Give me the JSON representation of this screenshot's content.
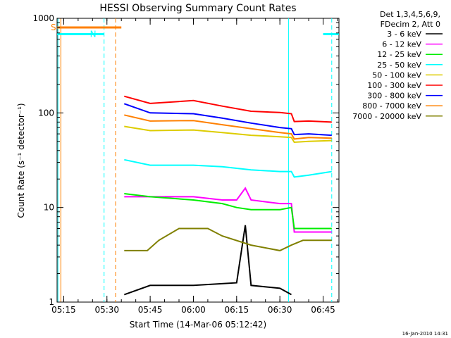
{
  "chart_data": {
    "type": "line",
    "title": "HESSI Observing Summary Count Rates",
    "xlabel": "Start Time (14-Mar-06 05:12:42)",
    "ylabel": "Count Rate (s⁻¹ detector⁻¹)",
    "y_scale": "log",
    "ylim": [
      1,
      1000
    ],
    "xlim": [
      "05:12:42",
      "06:50:30"
    ],
    "y_ticks": [
      "1",
      "10",
      "100",
      "1000"
    ],
    "x_ticks": [
      "05:15",
      "05:30",
      "05:45",
      "06:00",
      "06:15",
      "06:30",
      "06:45"
    ],
    "legend_header": [
      "Det 1,3,4,5,6,9,",
      "FDecim 2, Att 0"
    ],
    "series": [
      {
        "name": "3 - 6 keV",
        "color": "#000000",
        "points": [
          [
            "05:36",
            "1.2"
          ],
          [
            "05:45",
            "1.5"
          ],
          [
            "06:00",
            "1.5"
          ],
          [
            "06:15",
            "1.6"
          ],
          [
            "06:18",
            "6.5"
          ],
          [
            "06:20",
            "1.5"
          ],
          [
            "06:30",
            "1.4"
          ],
          [
            "06:34",
            "1.2"
          ]
        ]
      },
      {
        "name": "6 - 12 keV",
        "color": "#ff00ff",
        "points": [
          [
            "05:36",
            "13"
          ],
          [
            "05:45",
            "13"
          ],
          [
            "06:00",
            "13"
          ],
          [
            "06:10",
            "12"
          ],
          [
            "06:15",
            "12"
          ],
          [
            "06:18",
            "16"
          ],
          [
            "06:20",
            "12"
          ],
          [
            "06:30",
            "11"
          ],
          [
            "06:34",
            "11"
          ],
          [
            "06:35",
            "5.5"
          ],
          [
            "06:48",
            "5.5"
          ]
        ]
      },
      {
        "name": "12 - 25 keV",
        "color": "#00ee00",
        "points": [
          [
            "05:36",
            "14"
          ],
          [
            "05:45",
            "13"
          ],
          [
            "06:00",
            "12"
          ],
          [
            "06:10",
            "11"
          ],
          [
            "06:15",
            "10"
          ],
          [
            "06:20",
            "9.5"
          ],
          [
            "06:30",
            "9.5"
          ],
          [
            "06:34",
            "10"
          ],
          [
            "06:35",
            "6"
          ],
          [
            "06:48",
            "6"
          ]
        ]
      },
      {
        "name": "25 - 50 keV",
        "color": "#00ffff",
        "points": [
          [
            "05:36",
            "32"
          ],
          [
            "05:45",
            "28"
          ],
          [
            "06:00",
            "28"
          ],
          [
            "06:10",
            "27"
          ],
          [
            "06:20",
            "25"
          ],
          [
            "06:30",
            "24"
          ],
          [
            "06:34",
            "24"
          ],
          [
            "06:35",
            "21"
          ],
          [
            "06:40",
            "22"
          ],
          [
            "06:48",
            "24"
          ]
        ]
      },
      {
        "name": "50 - 100 keV",
        "color": "#ddcc00",
        "points": [
          [
            "05:36",
            "72"
          ],
          [
            "05:45",
            "65"
          ],
          [
            "06:00",
            "66"
          ],
          [
            "06:10",
            "62"
          ],
          [
            "06:20",
            "58"
          ],
          [
            "06:30",
            "56"
          ],
          [
            "06:34",
            "55"
          ],
          [
            "06:35",
            "49"
          ],
          [
            "06:40",
            "50"
          ],
          [
            "06:48",
            "51"
          ]
        ]
      },
      {
        "name": "100 - 300 keV",
        "color": "#ff0000",
        "points": [
          [
            "05:36",
            "150"
          ],
          [
            "05:45",
            "126"
          ],
          [
            "06:00",
            "135"
          ],
          [
            "06:10",
            "118"
          ],
          [
            "06:20",
            "104"
          ],
          [
            "06:30",
            "101"
          ],
          [
            "06:34",
            "98"
          ],
          [
            "06:35",
            "81"
          ],
          [
            "06:40",
            "82"
          ],
          [
            "06:48",
            "80"
          ]
        ]
      },
      {
        "name": "300 - 800 keV",
        "color": "#0000ff",
        "points": [
          [
            "05:36",
            "125"
          ],
          [
            "05:45",
            "100"
          ],
          [
            "06:00",
            "98"
          ],
          [
            "06:10",
            "88"
          ],
          [
            "06:20",
            "78"
          ],
          [
            "06:30",
            "70"
          ],
          [
            "06:34",
            "68"
          ],
          [
            "06:35",
            "59"
          ],
          [
            "06:40",
            "60"
          ],
          [
            "06:48",
            "58"
          ]
        ]
      },
      {
        "name": "800 - 7000 keV",
        "color": "#ff8000",
        "points": [
          [
            "05:36",
            "95"
          ],
          [
            "05:45",
            "82"
          ],
          [
            "06:00",
            "83"
          ],
          [
            "06:10",
            "75"
          ],
          [
            "06:20",
            "68"
          ],
          [
            "06:30",
            "62"
          ],
          [
            "06:34",
            "60"
          ],
          [
            "06:35",
            "53"
          ],
          [
            "06:40",
            "55"
          ],
          [
            "06:48",
            "54"
          ]
        ]
      },
      {
        "name": "7000 - 20000 keV",
        "color": "#808000",
        "points": [
          [
            "05:36",
            "3.5"
          ],
          [
            "05:44",
            "3.5"
          ],
          [
            "05:48",
            "4.5"
          ],
          [
            "05:55",
            "6"
          ],
          [
            "06:05",
            "6"
          ],
          [
            "06:10",
            "5"
          ],
          [
            "06:20",
            "4"
          ],
          [
            "06:30",
            "3.5"
          ],
          [
            "06:34",
            "4"
          ],
          [
            "06:38",
            "4.5"
          ],
          [
            "06:48",
            "4.5"
          ]
        ]
      }
    ],
    "annotations": {
      "S": {
        "label": "S",
        "color": "#ff8000",
        "from": "05:12:42",
        "to": "05:35",
        "y": "800"
      },
      "N": {
        "label": "N",
        "color": "#00ffff",
        "from": "05:12:42",
        "to": "05:29",
        "y": "680"
      },
      "N2": {
        "color": "#00ffff",
        "from": "06:45",
        "to": "06:50:30",
        "y": "680"
      }
    },
    "vlines": [
      {
        "color": "#ff8000",
        "x": "05:14",
        "style": "solid"
      },
      {
        "color": "#00ffff",
        "x": "05:13",
        "style": "solid"
      },
      {
        "color": "#00ffff",
        "x": "05:29",
        "style": "dashed"
      },
      {
        "color": "#ff8000",
        "x": "05:33",
        "style": "dashed"
      },
      {
        "color": "#00ffff",
        "x": "06:33",
        "style": "solid"
      },
      {
        "color": "#00ffff",
        "x": "06:48",
        "style": "dashed"
      }
    ],
    "footer": "16-Jan-2010 14:31"
  }
}
